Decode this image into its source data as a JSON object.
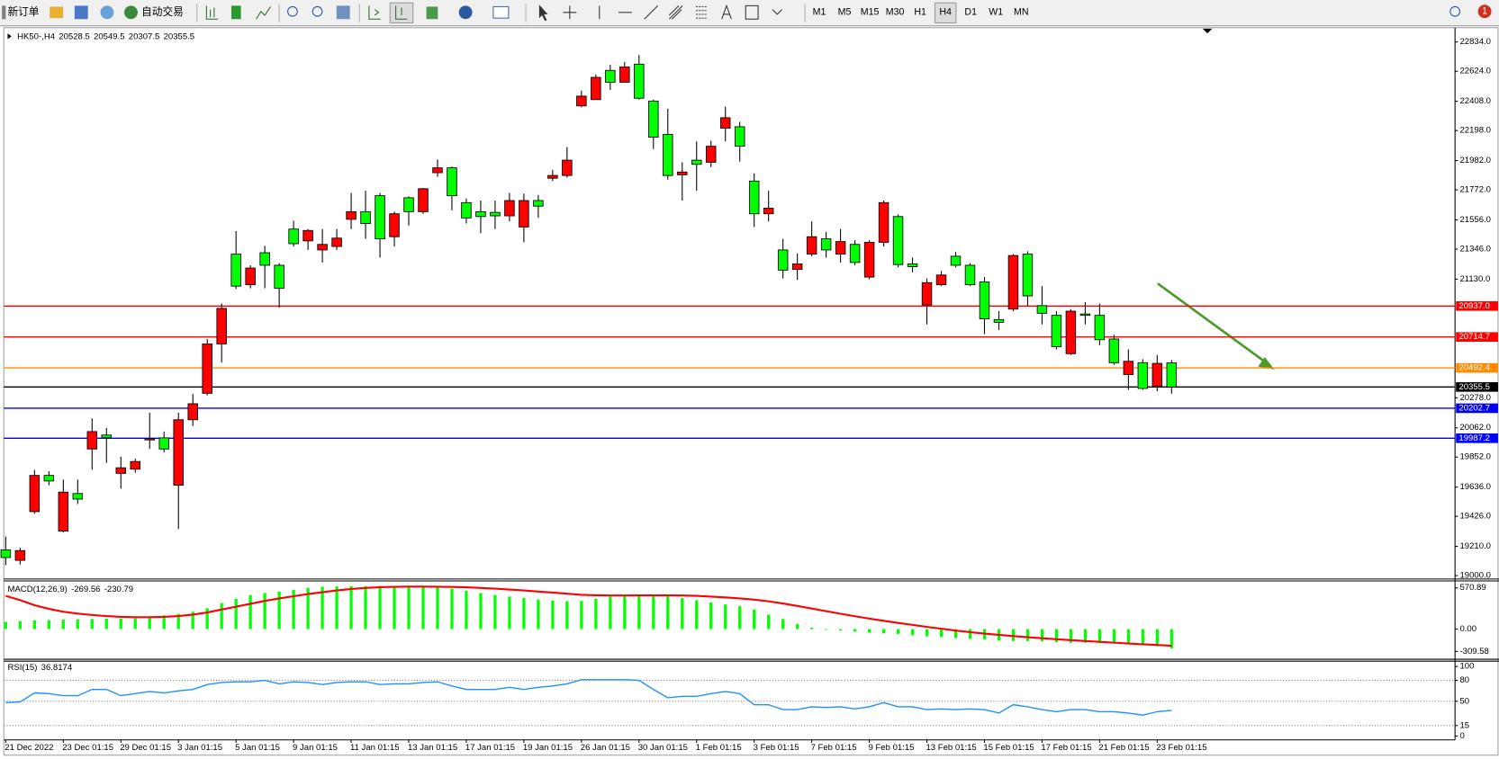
{
  "toolbar": {
    "new_order": "新订单",
    "auto_trading": "自动交易",
    "timeframes": [
      "M1",
      "M5",
      "M15",
      "M30",
      "H1",
      "H4",
      "D1",
      "W1",
      "MN"
    ],
    "active_timeframe": "H4",
    "alerts": 1
  },
  "chart_data": [
    {
      "type": "candlestick",
      "title": "HK50-,H4",
      "up_color": "#ff0000",
      "down_color": "#00ff00",
      "categories": [
        "21 Dec 2022",
        null,
        null,
        null,
        "23 Dec 01:15",
        null,
        null,
        null,
        "29 Dec 01:15",
        null,
        null,
        null,
        "3 Jan 01:15",
        null,
        null,
        null,
        "5 Jan 01:15",
        null,
        null,
        null,
        "9 Jan 01:15",
        null,
        null,
        null,
        "11 Jan 01:15",
        null,
        null,
        null,
        "13 Jan 01:15",
        null,
        null,
        null,
        "17 Jan 01:15",
        null,
        null,
        null,
        "19 Jan 01:15",
        null,
        null,
        null,
        "26 Jan 01:15",
        null,
        null,
        null,
        "30 Jan 01:15",
        null,
        null,
        null,
        "1 Feb 01:15",
        null,
        null,
        null,
        "3 Feb 01:15",
        null,
        null,
        null,
        "7 Feb 01:15",
        null,
        null,
        null,
        "9 Feb 01:15",
        null,
        null,
        null,
        "13 Feb 01:15",
        null,
        null,
        null,
        "15 Feb 01:15",
        null,
        null,
        null,
        "17 Feb 01:15",
        null,
        null,
        null,
        "21 Feb 01:15",
        null,
        null,
        null,
        "23 Feb 01:15",
        null
      ],
      "open": [
        19185,
        19110,
        19460,
        19720,
        19320,
        19590,
        19910,
        20010,
        19735,
        19765,
        19975,
        19990,
        19650,
        20120,
        20310,
        20665,
        21310,
        21090,
        21320,
        21230,
        21490,
        21405,
        21340,
        21365,
        21560,
        21615,
        21730,
        21435,
        21715,
        21615,
        21895,
        21930,
        21680,
        21615,
        21610,
        21585,
        21505,
        21695,
        21855,
        21875,
        22375,
        22420,
        22630,
        22545,
        22675,
        22410,
        22170,
        21880,
        21985,
        21970,
        22215,
        22225,
        21835,
        21600,
        21340,
        21200,
        21310,
        21420,
        21310,
        21380,
        21145,
        21395,
        21580,
        21240,
        20945,
        21090,
        21295,
        21230,
        21110,
        20840,
        20915,
        21310,
        20940,
        20870,
        20595,
        20880,
        20870,
        20700,
        20445,
        20530,
        20360,
        20528.5
      ],
      "high": [
        19280,
        19200,
        19760,
        19750,
        19690,
        19690,
        20130,
        20060,
        19855,
        19840,
        20170,
        20035,
        20170,
        20305,
        20700,
        20955,
        21475,
        21230,
        21370,
        21245,
        21550,
        21490,
        21490,
        21490,
        21750,
        21765,
        21750,
        21615,
        21725,
        21785,
        21990,
        21940,
        21710,
        21695,
        21695,
        21750,
        21745,
        21735,
        21915,
        22080,
        22485,
        22600,
        22670,
        22690,
        22740,
        22420,
        22355,
        21970,
        22120,
        22125,
        22370,
        22260,
        21890,
        21765,
        21420,
        21315,
        21545,
        21470,
        21490,
        21410,
        21410,
        21695,
        21595,
        21285,
        21135,
        21190,
        21325,
        21245,
        21145,
        20900,
        21310,
        21330,
        21080,
        20900,
        20915,
        20965,
        20955,
        20730,
        20625,
        20555,
        20585,
        20549.5
      ],
      "low": [
        19075,
        19080,
        19445,
        19650,
        19310,
        19515,
        19760,
        19810,
        19625,
        19740,
        19910,
        19885,
        19335,
        20075,
        20295,
        20530,
        21060,
        21065,
        21065,
        20925,
        21365,
        21340,
        21250,
        21340,
        21490,
        21420,
        21285,
        21365,
        21515,
        21600,
        21865,
        21625,
        21530,
        21460,
        21490,
        21545,
        21395,
        21570,
        21835,
        21860,
        22365,
        22420,
        22490,
        22545,
        22420,
        22065,
        21845,
        21695,
        21765,
        21935,
        22120,
        21975,
        21505,
        21545,
        21135,
        21125,
        21295,
        21285,
        21250,
        21230,
        21130,
        21365,
        21215,
        21180,
        20805,
        21080,
        21215,
        21080,
        20735,
        20765,
        20900,
        20940,
        20805,
        20625,
        20585,
        20805,
        20655,
        20515,
        20335,
        20335,
        20325,
        20307.5
      ],
      "close": [
        19130,
        19180,
        19720,
        19680,
        19600,
        19550,
        20035,
        19990,
        19775,
        19820,
        19985,
        19910,
        20120,
        20235,
        20665,
        20920,
        21080,
        21210,
        21230,
        21065,
        21385,
        21480,
        21380,
        21425,
        21615,
        21530,
        21420,
        21600,
        21615,
        21780,
        21930,
        21730,
        21570,
        21580,
        21585,
        21695,
        21695,
        21655,
        21875,
        21985,
        22445,
        22580,
        22545,
        22655,
        22430,
        22150,
        21875,
        21900,
        21955,
        22085,
        22290,
        22085,
        21600,
        21640,
        21195,
        21240,
        21435,
        21340,
        21400,
        21250,
        21395,
        21680,
        21235,
        21220,
        21105,
        21160,
        21230,
        21090,
        20845,
        20820,
        21300,
        21010,
        20885,
        20645,
        20900,
        20870,
        20695,
        20530,
        20540,
        20345,
        20525,
        20355.5
      ],
      "ylim": [
        18979,
        22930
      ],
      "yticks": [
        {
          "value": 22834,
          "label": "22834.0"
        },
        {
          "value": 22624,
          "label": "22624.0"
        },
        {
          "value": 22408,
          "label": "22408.0"
        },
        {
          "value": 22198,
          "label": "22198.0"
        },
        {
          "value": 21982,
          "label": "21982.0"
        },
        {
          "value": 21772,
          "label": "21772.0"
        },
        {
          "value": 21556,
          "label": "21556.0"
        },
        {
          "value": 21346,
          "label": "21346.0"
        },
        {
          "value": 21130,
          "label": "21130.0"
        },
        {
          "value": 20278,
          "label": "20278.0"
        },
        {
          "value": 20062,
          "label": "20062.0"
        },
        {
          "value": 19852,
          "label": "19852.0"
        },
        {
          "value": 19636,
          "label": "19636.0"
        },
        {
          "value": 19426,
          "label": "19426.0"
        },
        {
          "value": 19210,
          "label": "19210.0"
        },
        {
          "value": 19000,
          "label": "19000.0"
        }
      ],
      "hlines": [
        {
          "value": 20937,
          "label": "20937.0",
          "color": "#ff0000"
        },
        {
          "value": 20714.7,
          "color": "#ff0000"
        },
        {
          "value": 20492.4,
          "color": "#ff8c00"
        },
        {
          "value": 20355.5,
          "color": "#000000"
        },
        {
          "value": 20202.7,
          "color": "#0000ff"
        },
        {
          "value": 19987.2,
          "color": "#0000ff"
        }
      ]
    },
    {
      "type": "macd",
      "title": "MACD(12,26,9)",
      "ylim": [
        -411,
        660
      ],
      "yticks": [
        570.89,
        {
          "value": 0,
          "label": "0.00"
        },
        -309.58
      ],
      "series": [
        {
          "type": "bar",
          "color": "#00ff00",
          "values": [
            100,
            110,
            120,
            125,
            130,
            135,
            140,
            145,
            145,
            150,
            170,
            190,
            210,
            240,
            290,
            360,
            420,
            470,
            500,
            520,
            545,
            570,
            585,
            590,
            595,
            595,
            590,
            590,
            590,
            585,
            575,
            560,
            530,
            500,
            470,
            450,
            430,
            410,
            395,
            385,
            390,
            420,
            450,
            470,
            480,
            480,
            460,
            430,
            400,
            370,
            340,
            320,
            270,
            200,
            140,
            70,
            20,
            -10,
            -20,
            -35,
            -50,
            -60,
            -70,
            -85,
            -100,
            -110,
            -125,
            -135,
            -145,
            -160,
            -165,
            -165,
            -170,
            -180,
            -190,
            -190,
            -195,
            -200,
            -210,
            -225,
            -240,
            -269.56
          ]
        },
        {
          "type": "line",
          "color": "#ff0000",
          "values": [
            460,
            400,
            330,
            280,
            240,
            215,
            195,
            180,
            170,
            165,
            165,
            170,
            180,
            200,
            230,
            270,
            310,
            350,
            390,
            425,
            455,
            485,
            510,
            535,
            555,
            570,
            580,
            585,
            588,
            588,
            587,
            584,
            578,
            570,
            560,
            548,
            535,
            520,
            505,
            490,
            475,
            468,
            465,
            465,
            466,
            467,
            467,
            465,
            460,
            450,
            438,
            425,
            408,
            385,
            355,
            320,
            285,
            248,
            212,
            178,
            145,
            115,
            85,
            58,
            30,
            5,
            -20,
            -42,
            -62,
            -80,
            -97,
            -112,
            -126,
            -140,
            -153,
            -165,
            -177,
            -188,
            -199,
            -210,
            -220,
            -230.79
          ]
        }
      ]
    },
    {
      "type": "line",
      "title": "RSI(15)",
      "ylim": [
        -5.6,
        107
      ],
      "yticks": [
        100,
        80,
        50,
        15,
        0
      ],
      "levels": [
        80,
        50,
        15
      ],
      "series": [
        {
          "color": "#1e90ff",
          "values": [
            48,
            49,
            62,
            61,
            58,
            58,
            67,
            67,
            58,
            61,
            64,
            62,
            65,
            67,
            74,
            77,
            78,
            78,
            80,
            75,
            78,
            77,
            74,
            77,
            78,
            78,
            74,
            75,
            75,
            77,
            78,
            72,
            67,
            67,
            67,
            70,
            67,
            70,
            72,
            75,
            81,
            81,
            81,
            81,
            80,
            67,
            55,
            57,
            57,
            61,
            64,
            61,
            45,
            45,
            38,
            38,
            42,
            41,
            42,
            39,
            42,
            48,
            42,
            42,
            38,
            39,
            38,
            39,
            38,
            33,
            45,
            42,
            38,
            35,
            38,
            38,
            35,
            35,
            33,
            30,
            35,
            36.8174
          ]
        }
      ]
    }
  ]
}
